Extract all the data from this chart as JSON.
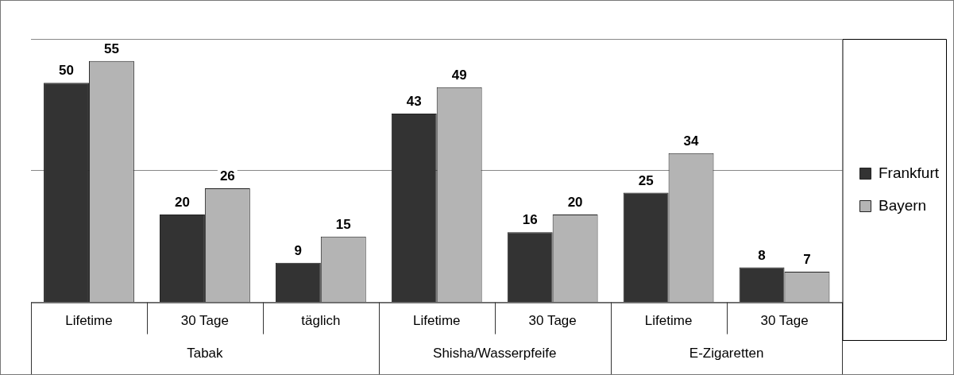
{
  "chart_data": {
    "type": "bar",
    "categories": [
      "Lifetime",
      "30 Tage",
      "täglich",
      "Lifetime",
      "30 Tage",
      "Lifetime",
      "30 Tage"
    ],
    "series": [
      {
        "name": "Frankfurt",
        "color": "#333333",
        "values": [
          50,
          20,
          9,
          43,
          16,
          25,
          8
        ]
      },
      {
        "name": "Bayern",
        "color": "#b4b4b4",
        "values": [
          55,
          26,
          15,
          49,
          20,
          34,
          7
        ]
      }
    ],
    "ylim": [
      0,
      60
    ],
    "yticks": [
      {
        "value": 0,
        "label": null
      },
      {
        "value": 30,
        "label": null
      },
      {
        "value": 60,
        "label": null
      }
    ],
    "grid": "y",
    "legend": "right",
    "data_labels": true,
    "tick_labels": "x",
    "annotations": [
      "Tabak",
      "Shisha/Wasserpfeife",
      "E-Zigaretten"
    ]
  }
}
